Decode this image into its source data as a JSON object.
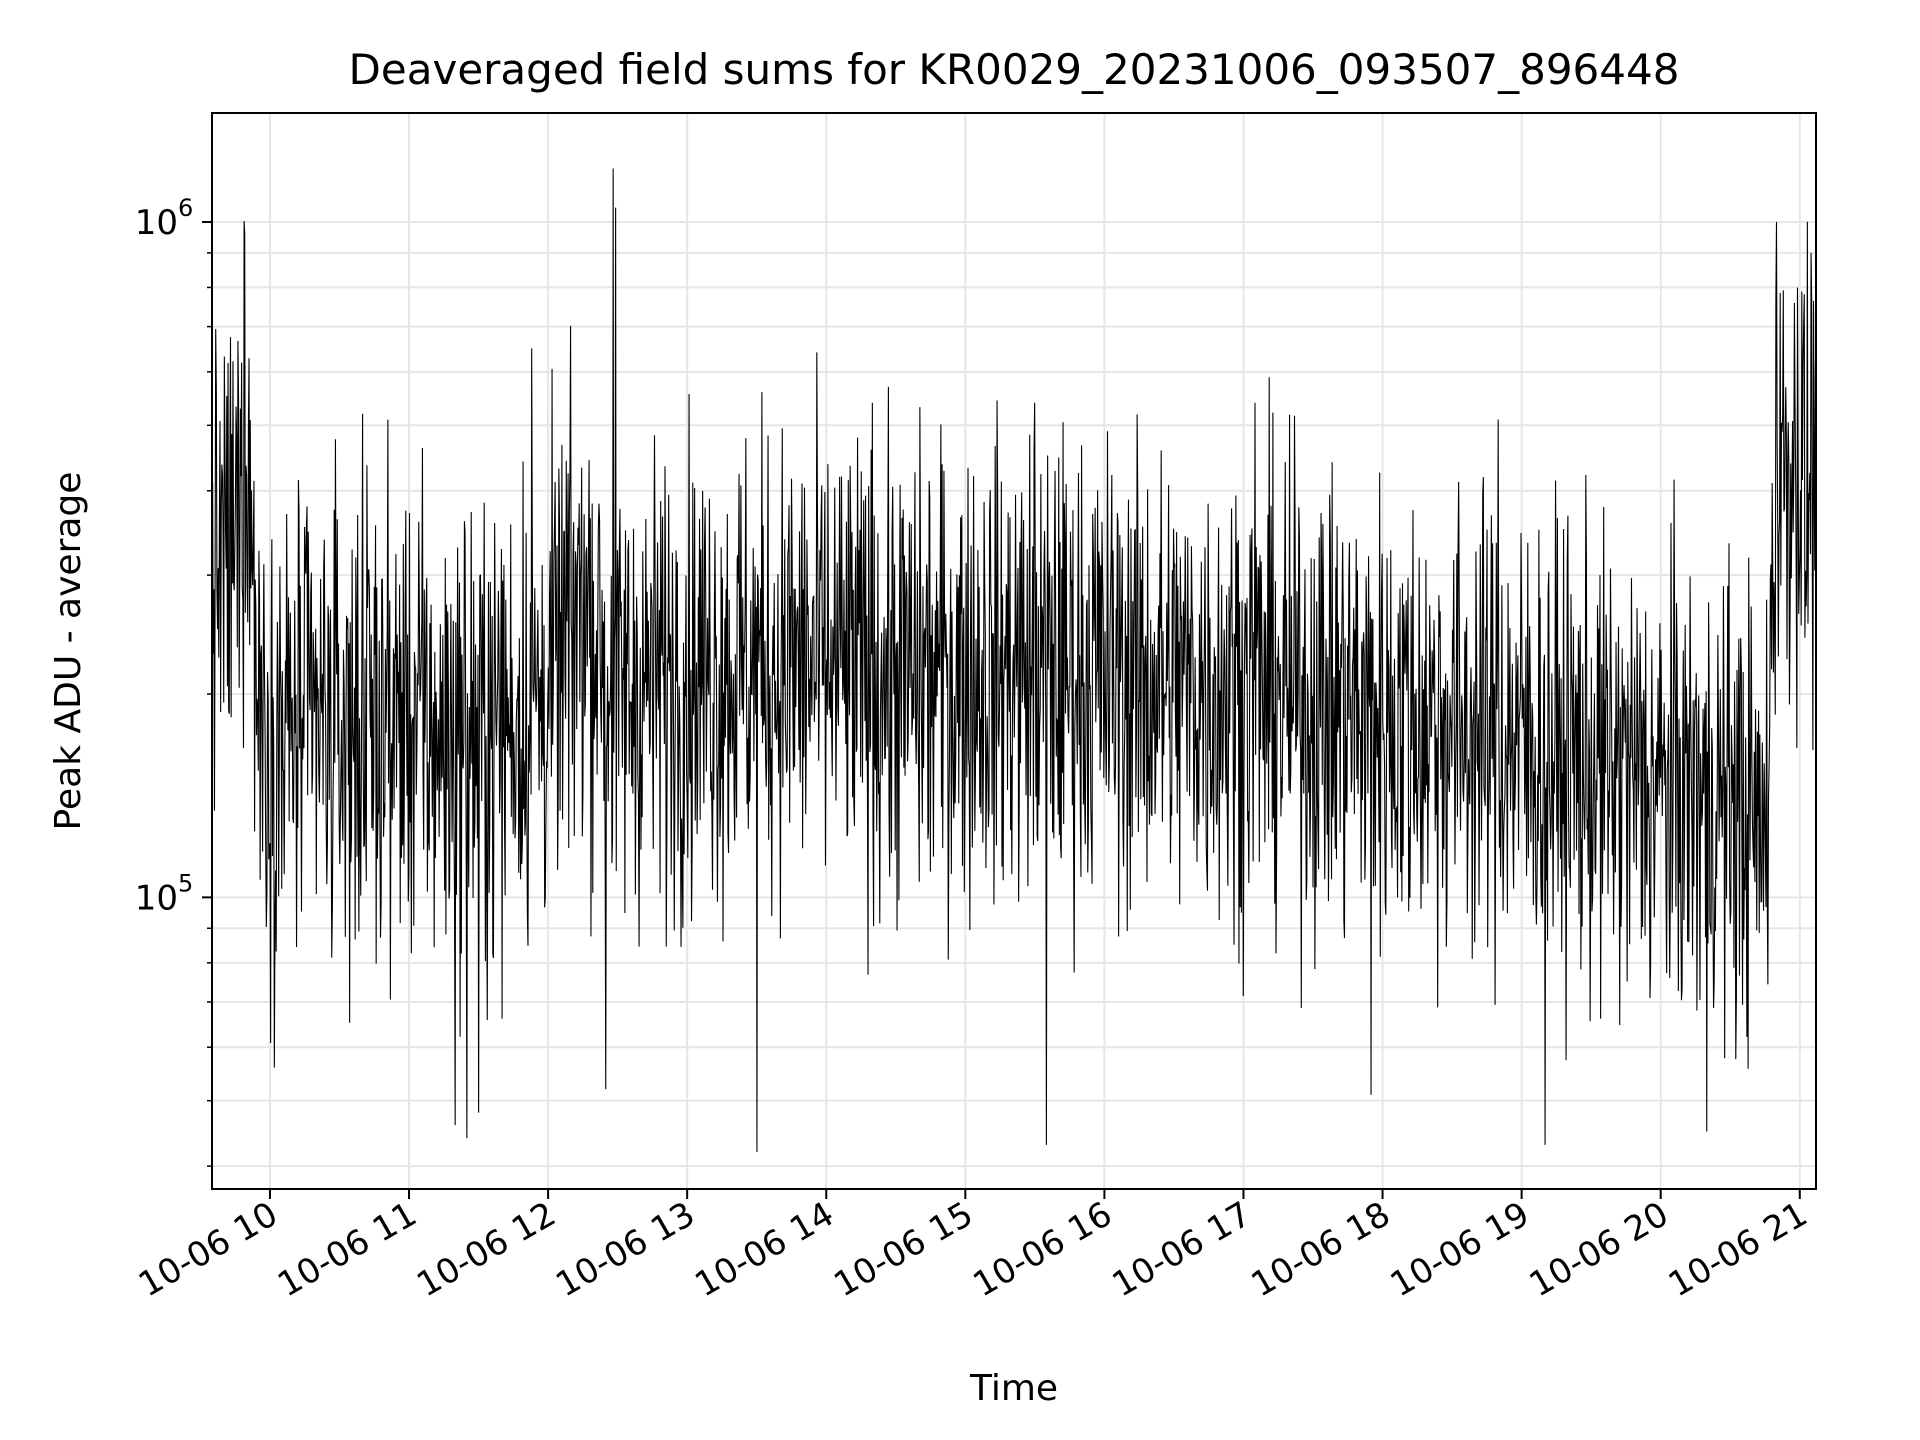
{
  "chart_data": {
    "type": "line",
    "title": "Deaveraged field sums for KR0029_20231006_093507_896448",
    "xlabel": "Time",
    "ylabel": "Peak ADU - average",
    "y_scale": "log",
    "grid": true,
    "legend": "none",
    "line_color": "#000000",
    "xlim": [
      "2023-10-06 09:35",
      "2023-10-06 21:07"
    ],
    "ylim": [
      37000,
      1450000
    ],
    "x_ticks": [
      {
        "value": "2023-10-06 10:00",
        "label": "10-06 10"
      },
      {
        "value": "2023-10-06 11:00",
        "label": "10-06 11"
      },
      {
        "value": "2023-10-06 12:00",
        "label": "10-06 12"
      },
      {
        "value": "2023-10-06 13:00",
        "label": "10-06 13"
      },
      {
        "value": "2023-10-06 14:00",
        "label": "10-06 14"
      },
      {
        "value": "2023-10-06 15:00",
        "label": "10-06 15"
      },
      {
        "value": "2023-10-06 16:00",
        "label": "10-06 16"
      },
      {
        "value": "2023-10-06 17:00",
        "label": "10-06 17"
      },
      {
        "value": "2023-10-06 18:00",
        "label": "10-06 18"
      },
      {
        "value": "2023-10-06 19:00",
        "label": "10-06 19"
      },
      {
        "value": "2023-10-06 20:00",
        "label": "10-06 20"
      },
      {
        "value": "2023-10-06 21:00",
        "label": "10-06 21"
      }
    ],
    "y_ticks": [
      {
        "value": 100000,
        "base": "10",
        "exp": "5"
      },
      {
        "value": 1000000,
        "base": "10",
        "exp": "6"
      }
    ],
    "series": [
      {
        "x": [
          "2023-10-06 09:35",
          "2023-10-06 09:45",
          "2023-10-06 09:50",
          "2023-10-06 09:55",
          "2023-10-06 10:00",
          "2023-10-06 10:15",
          "2023-10-06 10:30",
          "2023-10-06 10:45",
          "2023-10-06 11:00",
          "2023-10-06 11:15",
          "2023-10-06 11:30",
          "2023-10-06 11:45",
          "2023-10-06 12:00",
          "2023-10-06 12:15",
          "2023-10-06 12:30",
          "2023-10-06 12:45",
          "2023-10-06 13:00",
          "2023-10-06 13:30",
          "2023-10-06 14:00",
          "2023-10-06 14:30",
          "2023-10-06 15:00",
          "2023-10-06 15:30",
          "2023-10-06 16:00",
          "2023-10-06 16:30",
          "2023-10-06 17:00",
          "2023-10-06 17:30",
          "2023-10-06 18:00",
          "2023-10-06 18:30",
          "2023-10-06 19:00",
          "2023-10-06 19:30",
          "2023-10-06 20:00",
          "2023-10-06 20:30",
          "2023-10-06 20:40",
          "2023-10-06 20:45",
          "2023-10-06 20:50",
          "2023-10-06 21:00",
          "2023-10-06 21:05"
        ],
        "values": [
          300000,
          330000,
          500000,
          200000,
          170000,
          180000,
          175000,
          180000,
          185000,
          170000,
          175000,
          185000,
          200000,
          280000,
          200000,
          210000,
          215000,
          220000,
          220000,
          210000,
          215000,
          220000,
          215000,
          205000,
          205000,
          195000,
          185000,
          180000,
          170000,
          155000,
          145000,
          140000,
          130000,
          115000,
          450000,
          420000,
          380000
        ],
        "peaks": [
          {
            "x": "2023-10-06 09:49",
            "value": 960000
          },
          {
            "x": "2023-10-06 10:40",
            "value": 520000
          },
          {
            "x": "2023-10-06 11:53",
            "value": 650000
          },
          {
            "x": "2023-10-06 12:28",
            "value": 1200000
          },
          {
            "x": "2023-10-06 12:29",
            "value": 1050000
          },
          {
            "x": "2023-10-06 14:20",
            "value": 540000
          },
          {
            "x": "2023-10-06 15:30",
            "value": 540000
          },
          {
            "x": "2023-10-06 17:05",
            "value": 540000
          },
          {
            "x": "2023-10-06 18:50",
            "value": 510000
          },
          {
            "x": "2023-10-06 20:50",
            "value": 1000000
          },
          {
            "x": "2023-10-06 20:59",
            "value": 800000
          },
          {
            "x": "2023-10-06 21:05",
            "value": 900000
          }
        ],
        "troughs": [
          {
            "x": "2023-10-06 11:20",
            "value": 46000
          },
          {
            "x": "2023-10-06 11:25",
            "value": 44000
          },
          {
            "x": "2023-10-06 11:30",
            "value": 48000
          },
          {
            "x": "2023-10-06 12:25",
            "value": 52000
          },
          {
            "x": "2023-10-06 13:30",
            "value": 42000
          },
          {
            "x": "2023-10-06 15:35",
            "value": 43000
          },
          {
            "x": "2023-10-06 17:55",
            "value": 51000
          },
          {
            "x": "2023-10-06 19:10",
            "value": 43000
          },
          {
            "x": "2023-10-06 20:20",
            "value": 45000
          }
        ]
      }
    ]
  }
}
